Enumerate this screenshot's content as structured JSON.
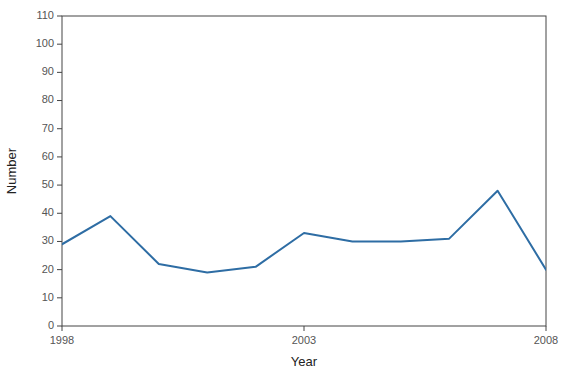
{
  "chart_data": {
    "type": "line",
    "xlabel": "Year",
    "ylabel": "Number",
    "x": [
      1998,
      1999,
      2000,
      2001,
      2002,
      2003,
      2004,
      2005,
      2006,
      2007,
      2008
    ],
    "values": [
      29,
      39,
      22,
      19,
      21,
      33,
      30,
      30,
      31,
      48,
      20
    ],
    "color": "#2e6da4",
    "xlim": [
      1998,
      2008
    ],
    "ylim": [
      0,
      110
    ],
    "xticks": [
      1998,
      2003,
      2008
    ],
    "yticks": [
      0,
      10,
      20,
      30,
      40,
      50,
      60,
      70,
      80,
      90,
      100,
      110
    ],
    "grid": false
  }
}
